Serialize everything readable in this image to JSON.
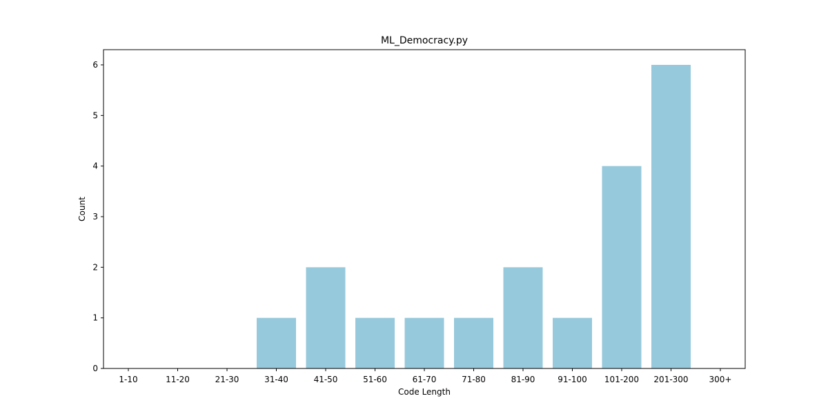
{
  "chart_data": {
    "type": "bar",
    "title": "ML_Democracy.py",
    "xlabel": "Code Length",
    "ylabel": "Count",
    "categories": [
      "1-10",
      "11-20",
      "21-30",
      "31-40",
      "41-50",
      "51-60",
      "61-70",
      "71-80",
      "81-90",
      "91-100",
      "101-200",
      "201-300",
      "300+"
    ],
    "values": [
      0,
      0,
      0,
      1,
      2,
      1,
      1,
      1,
      2,
      1,
      4,
      6,
      0
    ],
    "ylim": [
      0,
      6.3
    ],
    "yticks": [
      "0",
      "1",
      "2",
      "3",
      "4",
      "5",
      "6"
    ],
    "grid": false,
    "bar_color": "#96c9dc"
  }
}
